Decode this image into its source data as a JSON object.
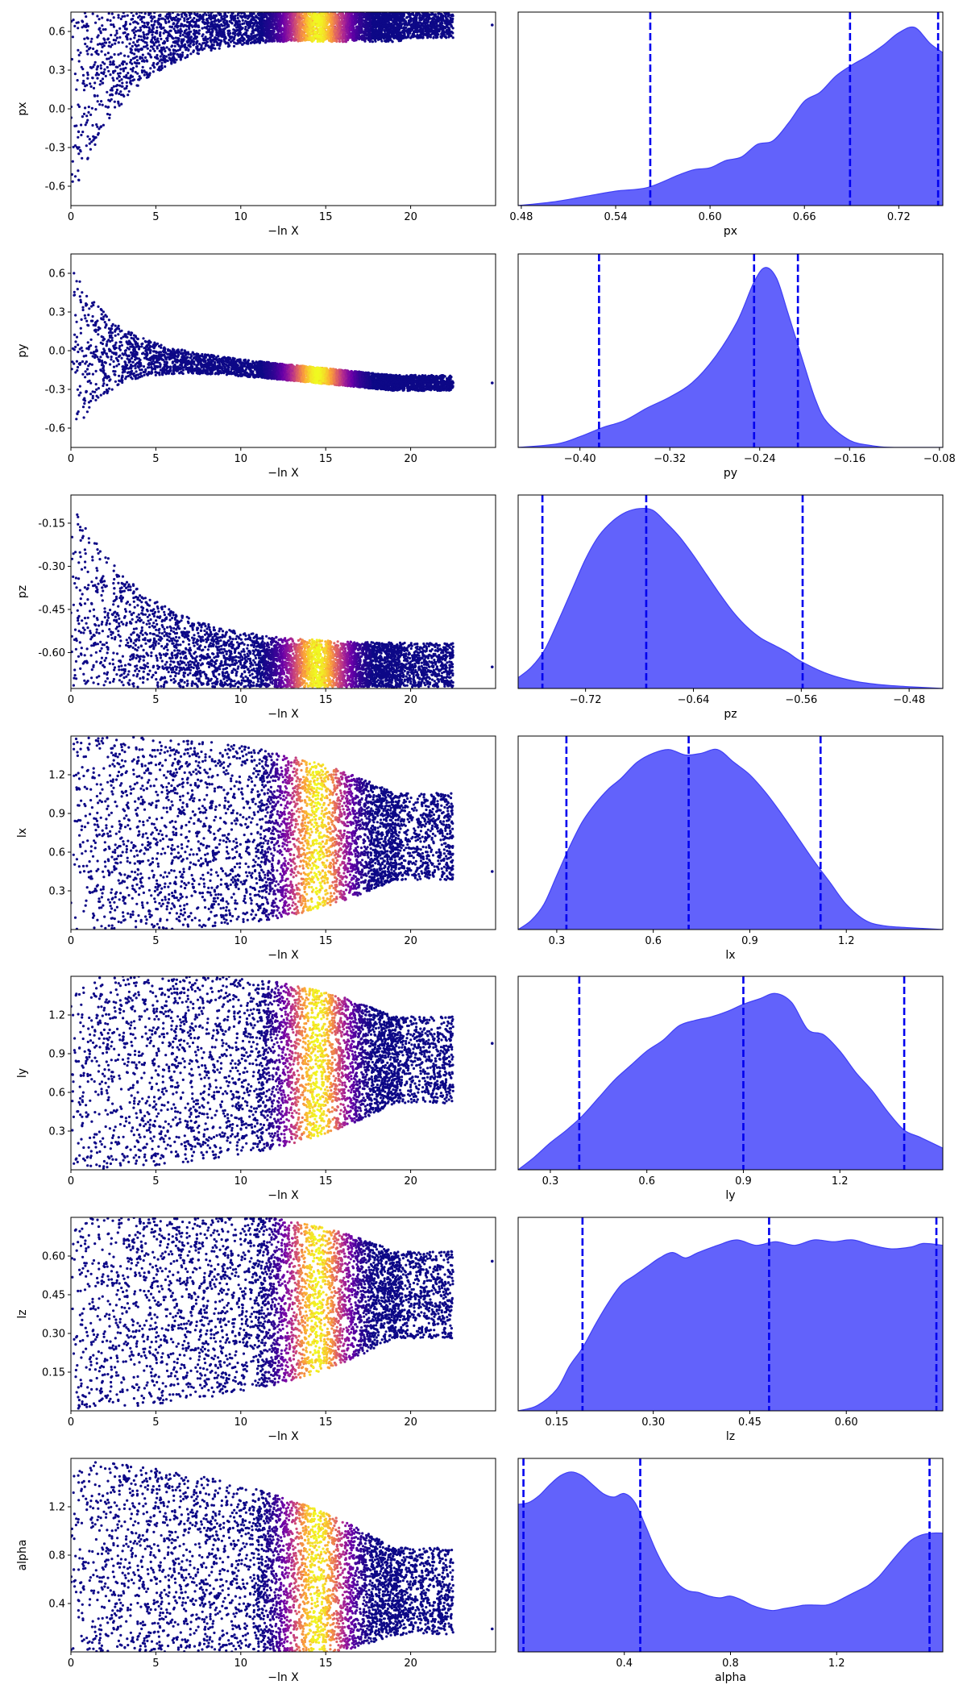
{
  "figure": {
    "colormap": [
      "#0d0887",
      "#6a00a8",
      "#b12a90",
      "#e16462",
      "#fca636",
      "#f0f921"
    ],
    "kde_fill": "#6262fb",
    "kde_edge": "#3f3ff5",
    "quantile_color": "#0000ee",
    "trace_base_color": "#0d0887"
  },
  "chart_data": [
    {
      "type": "scatter",
      "name": "trace-px",
      "xlabel": "−ln X",
      "ylabel": "px",
      "xlim": [
        0,
        25
      ],
      "ylim": [
        -0.75,
        0.75
      ],
      "xticks": [
        "0",
        "5",
        "10",
        "15",
        "20"
      ],
      "yticks": [
        "-0.6",
        "-0.3",
        "0.0",
        "0.3",
        "0.6"
      ],
      "ytick_values": [
        -0.6,
        -0.3,
        0.0,
        0.3,
        0.6
      ],
      "trace": {
        "shape": "funnel_top",
        "peak_x": 14.5,
        "upper": 0.75,
        "lower_start": -0.75,
        "lower_end": 0.55,
        "last_x": 24.8,
        "last_y": 0.65
      }
    },
    {
      "type": "area",
      "name": "posterior-px",
      "xlabel": "px",
      "xlim": [
        0.478,
        0.748
      ],
      "xticks": [
        "0.48",
        "0.54",
        "0.60",
        "0.66",
        "0.72"
      ],
      "xtick_values": [
        0.48,
        0.54,
        0.6,
        0.66,
        0.72
      ],
      "quantiles": [
        0.562,
        0.689,
        0.745
      ],
      "kde": {
        "x": [
          0.478,
          0.5,
          0.52,
          0.54,
          0.56,
          0.58,
          0.59,
          0.6,
          0.61,
          0.62,
          0.63,
          0.64,
          0.65,
          0.66,
          0.67,
          0.68,
          0.69,
          0.7,
          0.71,
          0.72,
          0.73,
          0.74,
          0.748
        ],
        "y": [
          0.0,
          0.02,
          0.05,
          0.08,
          0.1,
          0.17,
          0.2,
          0.21,
          0.25,
          0.27,
          0.34,
          0.36,
          0.46,
          0.58,
          0.63,
          0.72,
          0.78,
          0.83,
          0.89,
          0.96,
          0.99,
          0.9,
          0.85
        ]
      }
    },
    {
      "type": "scatter",
      "name": "trace-py",
      "xlabel": "−ln X",
      "ylabel": "py",
      "xlim": [
        0,
        25
      ],
      "ylim": [
        -0.75,
        0.75
      ],
      "xticks": [
        "0",
        "5",
        "10",
        "15",
        "20"
      ],
      "yticks": [
        "-0.6",
        "-0.3",
        "0.0",
        "0.3",
        "0.6"
      ],
      "ytick_values": [
        -0.6,
        -0.3,
        0.0,
        0.3,
        0.6
      ],
      "trace": {
        "shape": "funnel_center",
        "peak_x": 14.5,
        "center": -0.25,
        "upper": 0.75,
        "lower": -0.75,
        "last_x": 24.8,
        "last_y": -0.25
      }
    },
    {
      "type": "area",
      "name": "posterior-py",
      "xlabel": "py",
      "xlim": [
        -0.455,
        -0.077
      ],
      "xticks": [
        "−0.40",
        "−0.32",
        "−0.24",
        "−0.16",
        "−0.08"
      ],
      "xtick_values": [
        -0.4,
        -0.32,
        -0.24,
        -0.16,
        -0.08
      ],
      "quantiles": [
        -0.383,
        -0.245,
        -0.206
      ],
      "kde": {
        "x": [
          -0.455,
          -0.42,
          -0.4,
          -0.38,
          -0.36,
          -0.34,
          -0.32,
          -0.3,
          -0.28,
          -0.26,
          -0.245,
          -0.235,
          -0.225,
          -0.215,
          -0.2,
          -0.19,
          -0.18,
          -0.16,
          -0.14,
          -0.12,
          -0.077
        ],
        "y": [
          0.0,
          0.02,
          0.06,
          0.11,
          0.15,
          0.22,
          0.28,
          0.36,
          0.5,
          0.7,
          0.92,
          1.0,
          0.94,
          0.75,
          0.45,
          0.26,
          0.14,
          0.04,
          0.01,
          0.0,
          0.0
        ]
      }
    },
    {
      "type": "scatter",
      "name": "trace-pz",
      "xlabel": "−ln X",
      "ylabel": "pz",
      "xlim": [
        0,
        25
      ],
      "ylim": [
        -0.725,
        -0.052
      ],
      "xticks": [
        "0",
        "5",
        "10",
        "15",
        "20"
      ],
      "yticks": [
        "-0.60",
        "-0.45",
        "-0.30",
        "-0.15"
      ],
      "ytick_values": [
        -0.6,
        -0.45,
        -0.3,
        -0.15
      ],
      "trace": {
        "shape": "funnel_bottom",
        "peak_x": 14.5,
        "lower": -0.72,
        "upper_start": -0.05,
        "upper_end": -0.57,
        "last_x": 24.8,
        "last_y": -0.65
      }
    },
    {
      "type": "area",
      "name": "posterior-pz",
      "xlabel": "pz",
      "xlim": [
        -0.77,
        -0.455
      ],
      "xticks": [
        "−0.72",
        "−0.64",
        "−0.56",
        "−0.48"
      ],
      "xtick_values": [
        -0.72,
        -0.64,
        -0.56,
        -0.48
      ],
      "quantiles": [
        -0.752,
        -0.675,
        -0.559
      ],
      "kde": {
        "x": [
          -0.77,
          -0.76,
          -0.75,
          -0.74,
          -0.73,
          -0.72,
          -0.71,
          -0.7,
          -0.69,
          -0.68,
          -0.67,
          -0.66,
          -0.65,
          -0.64,
          -0.63,
          -0.62,
          -0.61,
          -0.6,
          -0.59,
          -0.58,
          -0.57,
          -0.56,
          -0.54,
          -0.52,
          -0.5,
          -0.48,
          -0.455
        ],
        "y": [
          0.06,
          0.12,
          0.22,
          0.38,
          0.55,
          0.72,
          0.85,
          0.93,
          0.98,
          1.0,
          0.99,
          0.92,
          0.84,
          0.74,
          0.63,
          0.52,
          0.42,
          0.34,
          0.28,
          0.24,
          0.2,
          0.15,
          0.08,
          0.04,
          0.02,
          0.01,
          0.0
        ]
      }
    },
    {
      "type": "scatter",
      "name": "trace-lx",
      "xlabel": "−ln X",
      "ylabel": "lx",
      "xlim": [
        0,
        25
      ],
      "ylim": [
        0.0,
        1.5
      ],
      "xticks": [
        "0",
        "5",
        "10",
        "15",
        "20"
      ],
      "yticks": [
        "0.3",
        "0.6",
        "0.9",
        "1.2"
      ],
      "ytick_values": [
        0.3,
        0.6,
        0.9,
        1.2
      ],
      "trace": {
        "shape": "funnel_center",
        "peak_x": 14.5,
        "center": 0.72,
        "upper": 1.5,
        "lower": 0.0,
        "last_x": 24.8,
        "last_y": 0.45
      }
    },
    {
      "type": "area",
      "name": "posterior-lx",
      "xlabel": "lx",
      "xlim": [
        0.18,
        1.5
      ],
      "xticks": [
        "0.3",
        "0.6",
        "0.9",
        "1.2"
      ],
      "xtick_values": [
        0.3,
        0.6,
        0.9,
        1.2
      ],
      "quantiles": [
        0.33,
        0.71,
        1.12
      ],
      "kde": {
        "x": [
          0.18,
          0.22,
          0.26,
          0.3,
          0.34,
          0.38,
          0.42,
          0.46,
          0.5,
          0.55,
          0.6,
          0.65,
          0.7,
          0.75,
          0.8,
          0.85,
          0.9,
          0.95,
          1.0,
          1.05,
          1.1,
          1.15,
          1.2,
          1.26,
          1.32,
          1.4,
          1.5
        ],
        "y": [
          0.0,
          0.05,
          0.14,
          0.3,
          0.46,
          0.6,
          0.7,
          0.78,
          0.84,
          0.93,
          0.98,
          1.0,
          0.97,
          0.98,
          1.0,
          0.93,
          0.86,
          0.76,
          0.64,
          0.51,
          0.38,
          0.26,
          0.14,
          0.05,
          0.02,
          0.01,
          0.0
        ]
      }
    },
    {
      "type": "scatter",
      "name": "trace-ly",
      "xlabel": "−ln X",
      "ylabel": "ly",
      "xlim": [
        0,
        25
      ],
      "ylim": [
        0.0,
        1.5
      ],
      "xticks": [
        "0",
        "5",
        "10",
        "15",
        "20"
      ],
      "yticks": [
        "0.3",
        "0.6",
        "0.9",
        "1.2"
      ],
      "ytick_values": [
        0.3,
        0.6,
        0.9,
        1.2
      ],
      "trace": {
        "shape": "funnel_center",
        "peak_x": 14.5,
        "center": 0.85,
        "upper": 1.5,
        "lower": 0.0,
        "last_x": 24.8,
        "last_y": 0.98
      }
    },
    {
      "type": "area",
      "name": "posterior-ly",
      "xlabel": "ly",
      "xlim": [
        0.2,
        1.52
      ],
      "xticks": [
        "0.3",
        "0.6",
        "0.9",
        "1.2"
      ],
      "xtick_values": [
        0.3,
        0.6,
        0.9,
        1.2
      ],
      "quantiles": [
        0.39,
        0.9,
        1.4
      ],
      "kde": {
        "x": [
          0.2,
          0.25,
          0.3,
          0.35,
          0.4,
          0.45,
          0.5,
          0.55,
          0.6,
          0.65,
          0.7,
          0.75,
          0.8,
          0.85,
          0.9,
          0.95,
          1.0,
          1.05,
          1.1,
          1.15,
          1.2,
          1.25,
          1.3,
          1.35,
          1.4,
          1.45,
          1.52
        ],
        "y": [
          0.0,
          0.07,
          0.15,
          0.22,
          0.3,
          0.4,
          0.5,
          0.58,
          0.66,
          0.72,
          0.8,
          0.83,
          0.85,
          0.88,
          0.92,
          0.95,
          0.98,
          0.93,
          0.78,
          0.75,
          0.66,
          0.54,
          0.44,
          0.32,
          0.22,
          0.18,
          0.12
        ]
      }
    },
    {
      "type": "scatter",
      "name": "trace-lz",
      "xlabel": "−ln X",
      "ylabel": "lz",
      "xlim": [
        0,
        25
      ],
      "ylim": [
        0.0,
        0.75
      ],
      "xticks": [
        "0",
        "5",
        "10",
        "15",
        "20"
      ],
      "yticks": [
        "0.15",
        "0.30",
        "0.45",
        "0.60"
      ],
      "ytick_values": [
        0.15,
        0.3,
        0.45,
        0.6
      ],
      "trace": {
        "shape": "funnel_center",
        "peak_x": 14.5,
        "center": 0.45,
        "upper": 0.75,
        "lower": 0.0,
        "last_x": 24.8,
        "last_y": 0.58
      }
    },
    {
      "type": "area",
      "name": "posterior-lz",
      "xlabel": "lz",
      "xlim": [
        0.09,
        0.75
      ],
      "xticks": [
        "0.15",
        "0.30",
        "0.45",
        "0.60"
      ],
      "xtick_values": [
        0.15,
        0.3,
        0.45,
        0.6
      ],
      "quantiles": [
        0.19,
        0.48,
        0.74
      ],
      "kde": {
        "x": [
          0.09,
          0.12,
          0.15,
          0.17,
          0.19,
          0.21,
          0.23,
          0.25,
          0.27,
          0.29,
          0.31,
          0.33,
          0.35,
          0.37,
          0.4,
          0.43,
          0.46,
          0.49,
          0.52,
          0.55,
          0.58,
          0.61,
          0.64,
          0.67,
          0.7,
          0.72,
          0.75
        ],
        "y": [
          0.0,
          0.03,
          0.12,
          0.25,
          0.35,
          0.48,
          0.6,
          0.7,
          0.75,
          0.8,
          0.85,
          0.88,
          0.85,
          0.88,
          0.92,
          0.95,
          0.92,
          0.94,
          0.92,
          0.95,
          0.94,
          0.95,
          0.92,
          0.9,
          0.91,
          0.93,
          0.92
        ]
      }
    },
    {
      "type": "scatter",
      "name": "trace-alpha",
      "xlabel": "−ln X",
      "ylabel": "alpha",
      "xlim": [
        0,
        25
      ],
      "ylim": [
        0.0,
        1.6
      ],
      "xticks": [
        "0",
        "5",
        "10",
        "15",
        "20"
      ],
      "yticks": [
        "0.4",
        "0.8",
        "1.2"
      ],
      "ytick_values": [
        0.4,
        0.8,
        1.2
      ],
      "trace": {
        "shape": "funnel_center",
        "peak_x": 14.5,
        "center": 0.5,
        "upper": 1.6,
        "lower": 0.0,
        "last_x": 24.8,
        "last_y": 0.19
      }
    },
    {
      "type": "area",
      "name": "posterior-alpha",
      "xlabel": "alpha",
      "xlim": [
        0.0,
        1.6
      ],
      "xticks": [
        "0.4",
        "0.8",
        "1.2"
      ],
      "xtick_values": [
        0.4,
        0.8,
        1.2
      ],
      "quantiles": [
        0.02,
        0.46,
        1.55
      ],
      "kde": {
        "x": [
          0.0,
          0.04,
          0.08,
          0.12,
          0.16,
          0.2,
          0.24,
          0.28,
          0.32,
          0.36,
          0.4,
          0.44,
          0.48,
          0.52,
          0.56,
          0.6,
          0.64,
          0.68,
          0.72,
          0.76,
          0.8,
          0.84,
          0.88,
          0.92,
          0.96,
          1.0,
          1.04,
          1.08,
          1.12,
          1.16,
          1.2,
          1.24,
          1.28,
          1.32,
          1.36,
          1.4,
          1.44,
          1.48,
          1.52,
          1.56,
          1.6
        ],
        "y": [
          0.82,
          0.83,
          0.87,
          0.93,
          0.98,
          1.0,
          0.98,
          0.93,
          0.88,
          0.86,
          0.88,
          0.83,
          0.7,
          0.56,
          0.45,
          0.38,
          0.34,
          0.33,
          0.31,
          0.3,
          0.31,
          0.29,
          0.26,
          0.24,
          0.23,
          0.24,
          0.25,
          0.26,
          0.26,
          0.26,
          0.28,
          0.31,
          0.34,
          0.37,
          0.42,
          0.49,
          0.56,
          0.62,
          0.65,
          0.66,
          0.66
        ]
      }
    }
  ]
}
